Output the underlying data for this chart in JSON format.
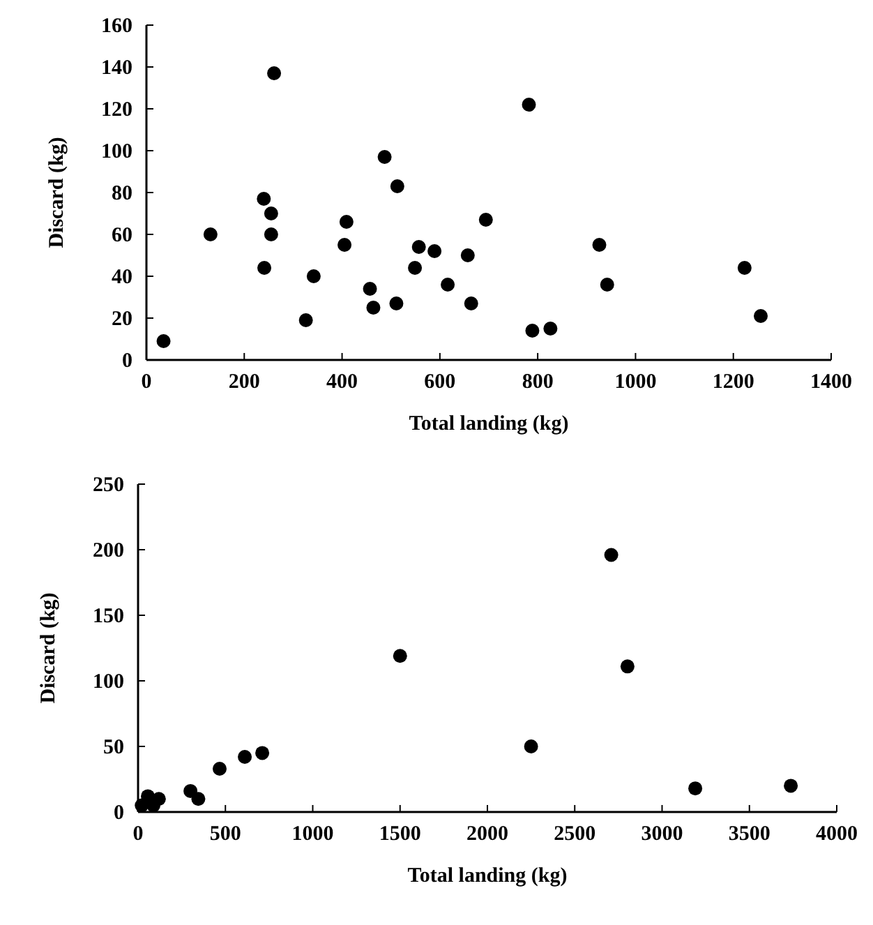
{
  "chart_data": [
    {
      "type": "scatter",
      "xlabel": "Total landing (kg)",
      "ylabel": "Discard (kg)",
      "xlim": [
        0,
        1400
      ],
      "ylim": [
        0,
        160
      ],
      "xticks": [
        0,
        200,
        400,
        600,
        800,
        1000,
        1200,
        1400
      ],
      "yticks": [
        0,
        20,
        40,
        60,
        80,
        100,
        120,
        140,
        160
      ],
      "marker": "circle",
      "series": [
        {
          "color": "#000000",
          "x": [
            35,
            131,
            261,
            240,
            255,
            255,
            241,
            326,
            342,
            409,
            405,
            487,
            513,
            457,
            464,
            511,
            557,
            549,
            589,
            616,
            657,
            664,
            694,
            782,
            789,
            826,
            926,
            942,
            1223,
            1256
          ],
          "values": [
            9,
            60,
            137,
            77,
            70,
            60,
            44,
            19,
            40,
            66,
            55,
            97,
            83,
            34,
            25,
            27,
            54,
            44,
            52,
            36,
            50,
            27,
            67,
            122,
            14,
            15,
            55,
            36,
            44,
            21
          ]
        }
      ]
    },
    {
      "type": "scatter",
      "xlabel": "Total landing (kg)",
      "ylabel": "Discard (kg)",
      "xlim": [
        0,
        4000
      ],
      "ylim": [
        0,
        250
      ],
      "xticks": [
        0,
        500,
        1000,
        1500,
        2000,
        2500,
        3000,
        3500,
        4000
      ],
      "yticks": [
        0,
        50,
        100,
        150,
        200,
        250
      ],
      "marker": "circle",
      "series": [
        {
          "color": "#000000",
          "x": [
            21,
            56,
            88,
            119,
            300,
            345,
            467,
            611,
            711,
            1500,
            2250,
            2709,
            2802,
            3190,
            3737
          ],
          "values": [
            5,
            12,
            5,
            10,
            16,
            10,
            33,
            42,
            45,
            119,
            50,
            196,
            111,
            18,
            20
          ]
        }
      ]
    }
  ]
}
